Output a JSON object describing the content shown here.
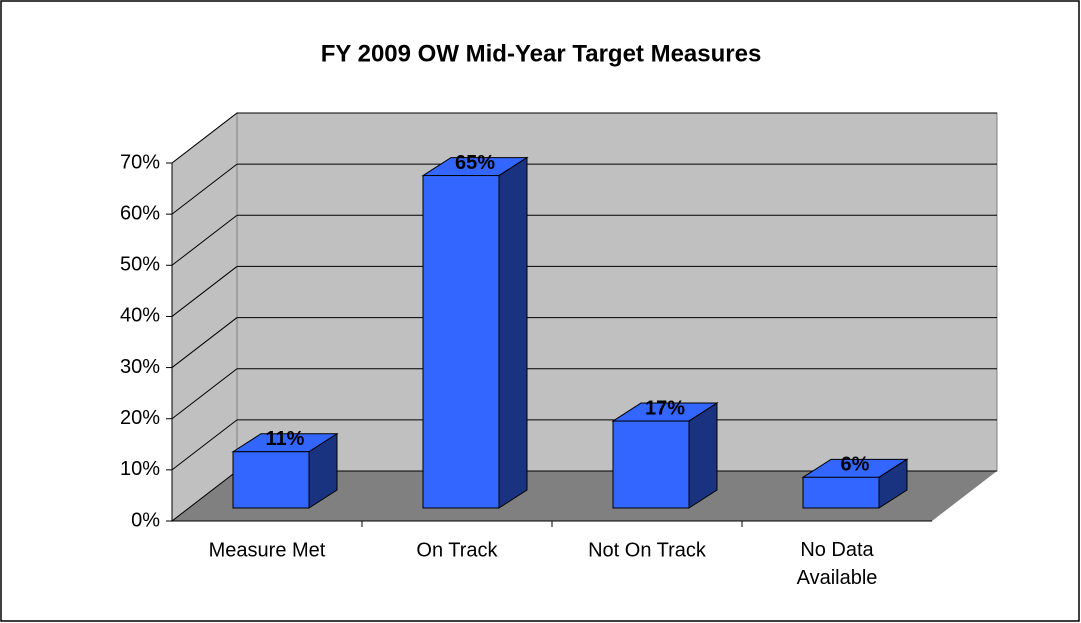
{
  "chart_data": {
    "type": "bar3d",
    "title": "FY 2009 OW Mid-Year Target Measures",
    "categories": [
      "Measure Met",
      "On Track",
      "Not On Track",
      "No Data Available"
    ],
    "values": [
      11,
      65,
      17,
      6
    ],
    "value_labels": [
      "11%",
      "65%",
      "17%",
      "6%"
    ],
    "color": "#3366ff",
    "ylim": [
      0,
      70
    ],
    "yticks": [
      {
        "value": 0,
        "label": "0%"
      },
      {
        "value": 10,
        "label": "10%"
      },
      {
        "value": 20,
        "label": "20%"
      },
      {
        "value": 30,
        "label": "30%"
      },
      {
        "value": 40,
        "label": "40%"
      },
      {
        "value": 50,
        "label": "50%"
      },
      {
        "value": 60,
        "label": "60%"
      },
      {
        "value": 70,
        "label": "70%"
      }
    ],
    "grid": true
  }
}
